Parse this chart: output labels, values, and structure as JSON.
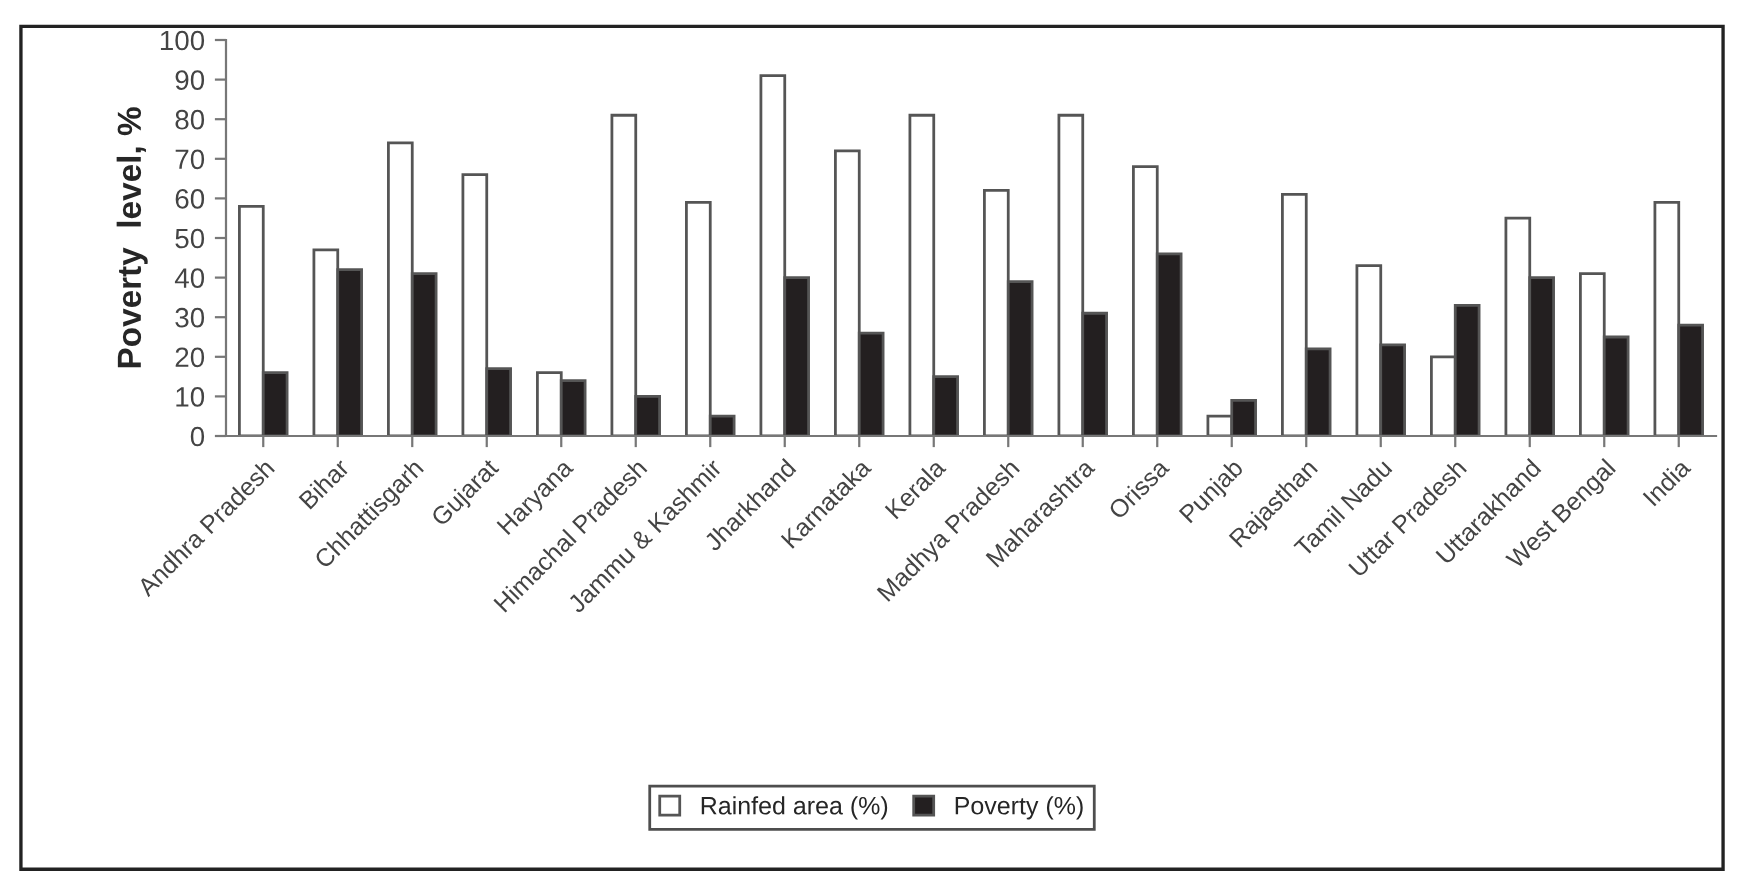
{
  "chart_data": {
    "type": "bar",
    "ylabel": "Poverty  level, %",
    "categories": [
      "Andhra Pradesh",
      "Bihar",
      "Chhattisgarh",
      "Gujarat",
      "Haryana",
      "Himachal Pradesh",
      "Jammu & Kashmir",
      "Jharkhand",
      "Karnataka",
      "Kerala",
      "Madhya Pradesh",
      "Maharashtra",
      "Orissa",
      "Punjab",
      "Rajasthan",
      "Tamil Nadu",
      "Uttar Pradesh",
      "Uttarakhand",
      "West Bengal",
      "India"
    ],
    "series": [
      {
        "name": "Rainfed area (%)",
        "color": "#ffffff",
        "values": [
          58,
          47,
          74,
          66,
          16,
          81,
          59,
          91,
          72,
          81,
          62,
          81,
          68,
          5,
          61,
          43,
          20,
          55,
          41,
          59
        ]
      },
      {
        "name": "Poverty (%)",
        "color": "#231f20",
        "values": [
          16,
          42,
          41,
          17,
          14,
          10,
          5,
          40,
          26,
          15,
          39,
          31,
          46,
          9,
          22,
          23,
          33,
          40,
          25,
          28
        ]
      }
    ],
    "ylim": [
      0,
      100
    ],
    "yticks": [
      0,
      10,
      20,
      30,
      40,
      50,
      60,
      70,
      80,
      90,
      100
    ],
    "grid": false,
    "legend": "bottom"
  }
}
